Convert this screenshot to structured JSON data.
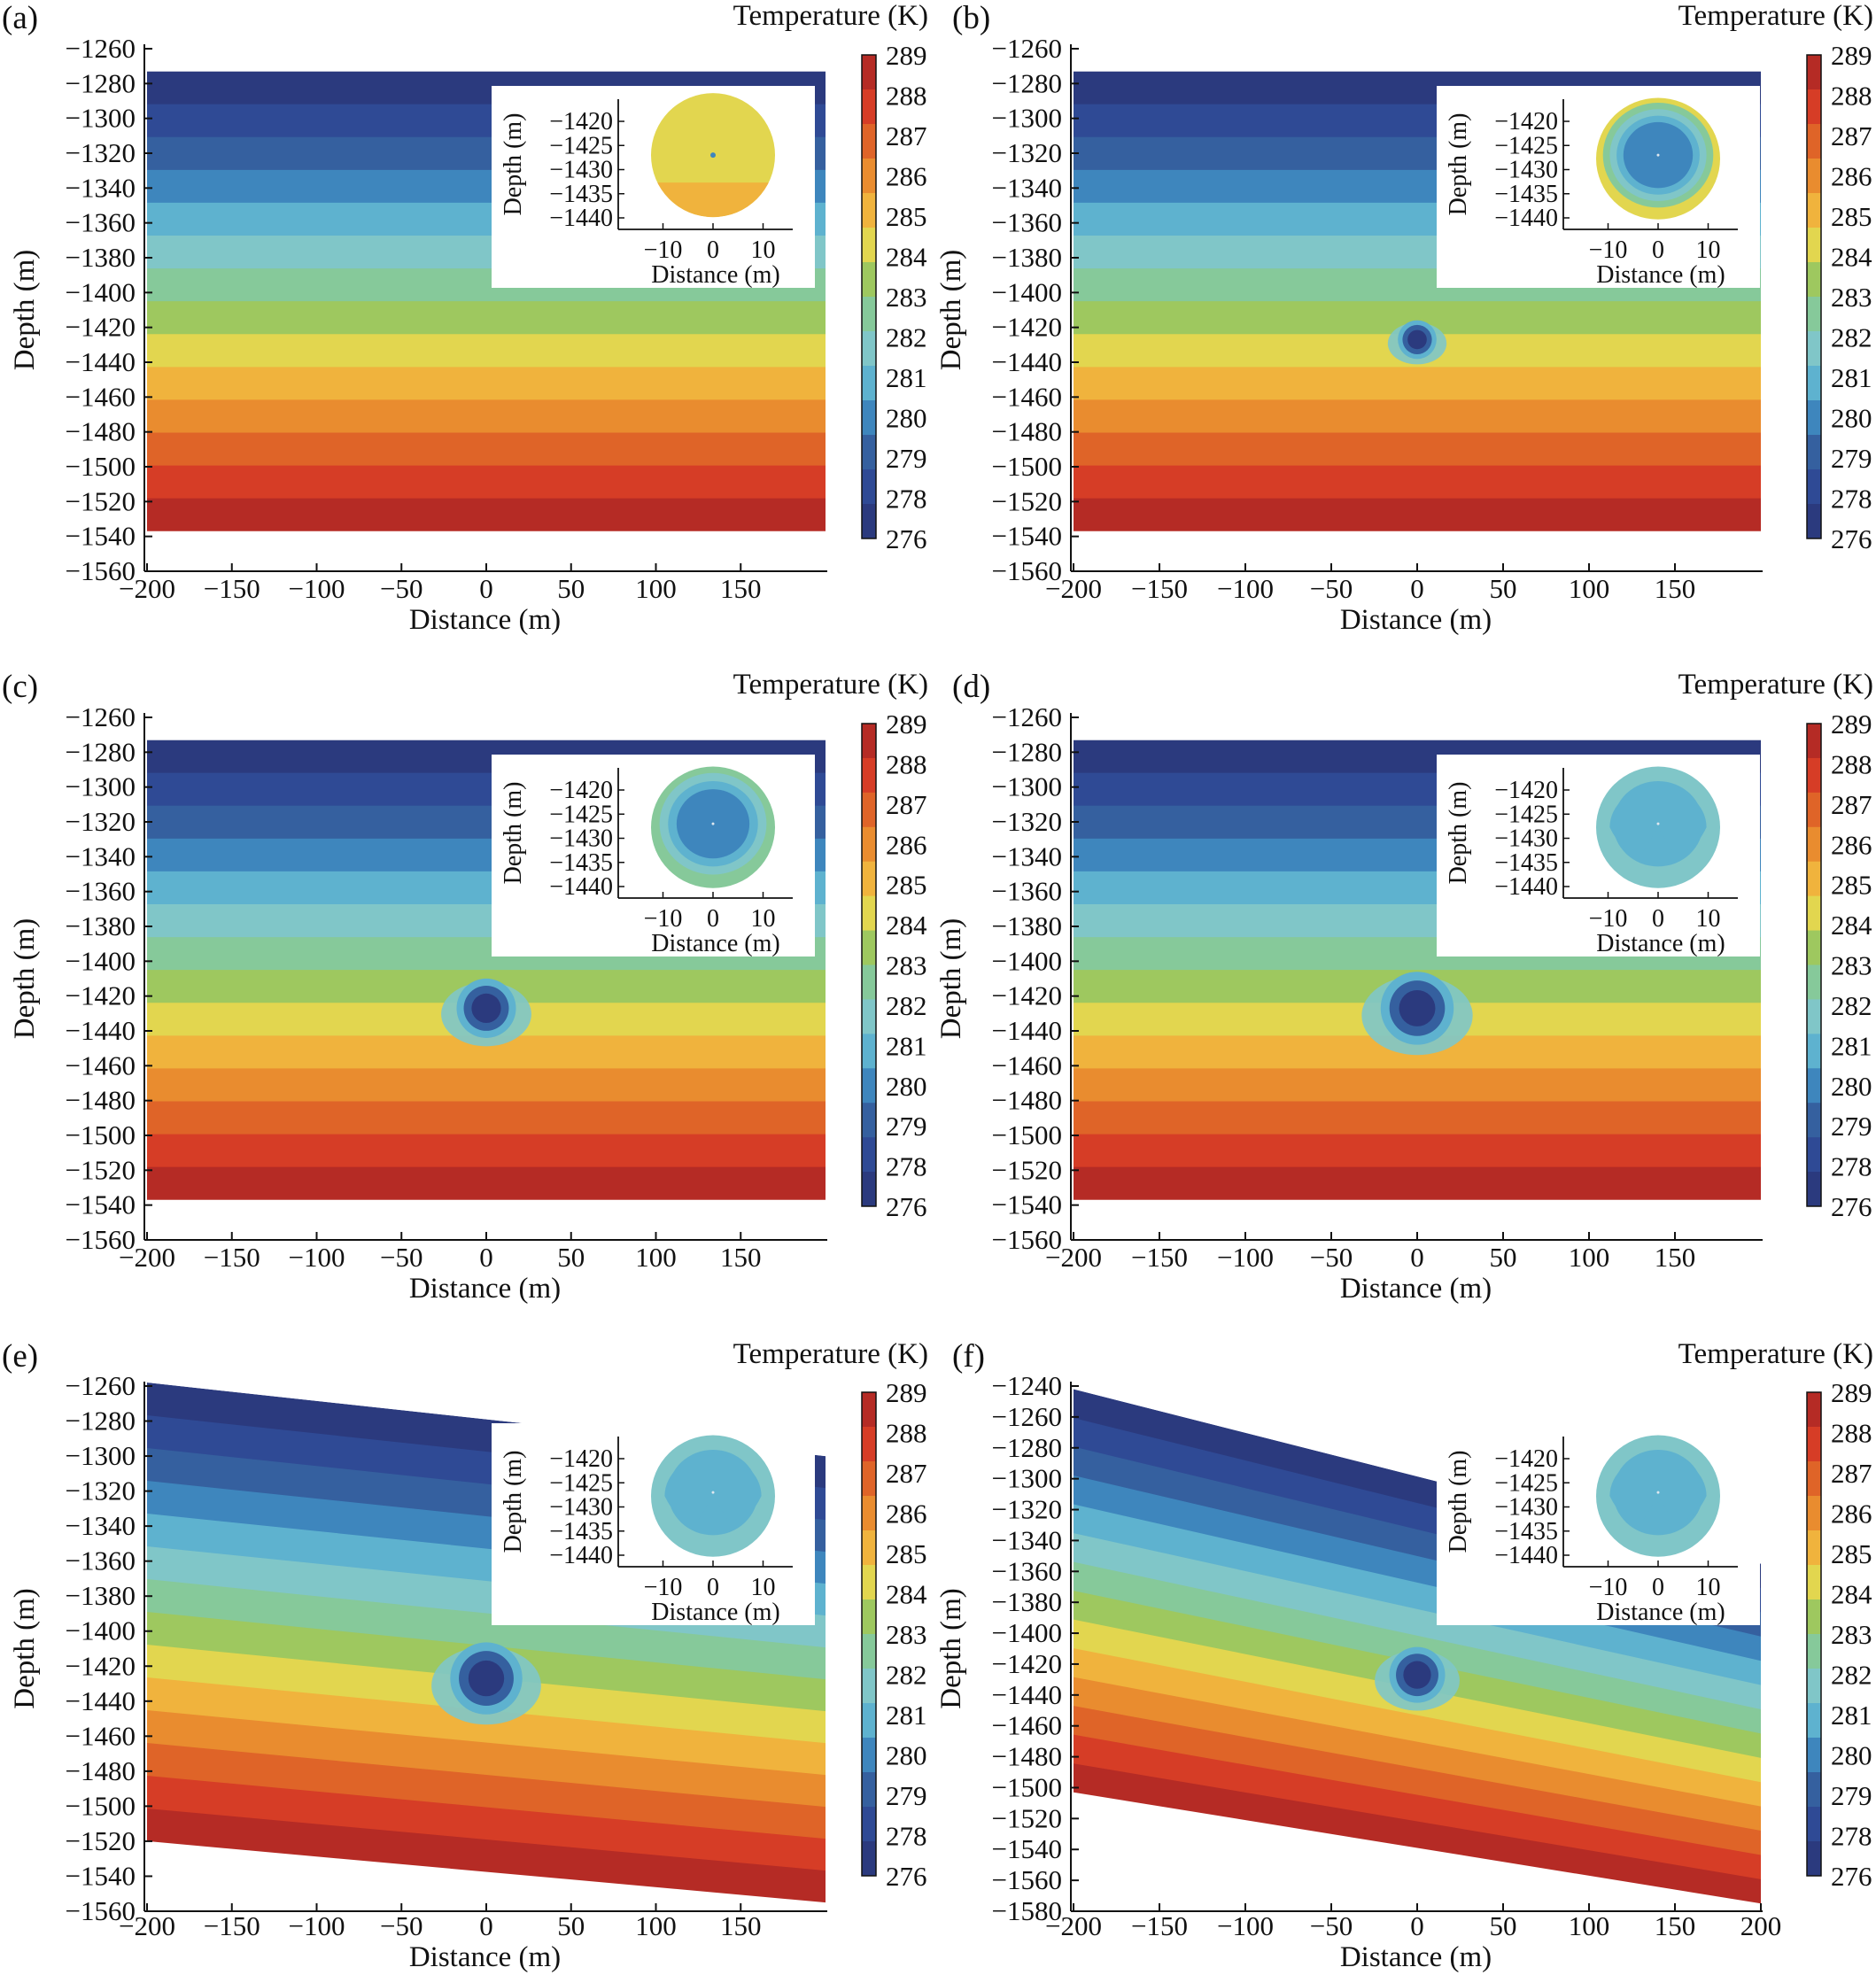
{
  "figure": {
    "panel_labels": [
      "(a)",
      "(b)",
      "(c)",
      "(d)",
      "(e)",
      "(f)"
    ],
    "colorbar_title": "Temperature (K)",
    "colorbar_ticks": [
      289,
      288,
      287,
      286,
      285,
      284,
      283,
      282,
      281,
      280,
      279,
      278,
      276
    ],
    "colors": [
      "#2b3a7e",
      "#2f4a95",
      "#35609f",
      "#3e86bd",
      "#5eb2cf",
      "#80c6c8",
      "#86c99a",
      "#9ec85f",
      "#e2d64f",
      "#f0b33d",
      "#e98c2f",
      "#df6428",
      "#d63d26",
      "#b52b25"
    ]
  },
  "chart_data": [
    {
      "panel": "(a)",
      "type": "heatmap",
      "xlabel": "Distance (m)",
      "ylabel": "Depth (m)",
      "xticks": [
        -200,
        -150,
        -100,
        -50,
        0,
        50,
        100,
        150
      ],
      "yticks": [
        -1260,
        -1280,
        -1300,
        -1320,
        -1340,
        -1360,
        -1380,
        -1400,
        -1420,
        -1440,
        -1460,
        -1480,
        -1500,
        -1520,
        -1540,
        -1560
      ],
      "xlim": [
        -200,
        200
      ],
      "ylim": [
        -1560,
        -1260
      ],
      "domain": {
        "x": [
          -200,
          200
        ],
        "top": [
          -1273,
          -1273
        ],
        "bottom": [
          -1537,
          -1537
        ]
      },
      "levels": [
        278,
        279,
        280,
        281,
        282,
        283,
        284,
        285,
        286,
        287,
        288,
        289
      ],
      "hydrate": {
        "x": 0,
        "y": -1427,
        "radius": 0
      },
      "inset": {
        "xlabel": "Distance (m)",
        "ylabel": "Depth (m)",
        "xticks": [
          -10,
          0,
          10
        ],
        "yticks": [
          -1420,
          -1425,
          -1430,
          -1435,
          -1440
        ],
        "contours": [
          284,
          285
        ],
        "core_temperature": 278
      }
    },
    {
      "panel": "(b)",
      "type": "heatmap",
      "xlabel": "Distance (m)",
      "ylabel": "Depth (m)",
      "xticks": [
        -200,
        -150,
        -100,
        -50,
        0,
        50,
        100,
        150
      ],
      "yticks": [
        -1260,
        -1280,
        -1300,
        -1320,
        -1340,
        -1360,
        -1380,
        -1400,
        -1420,
        -1440,
        -1460,
        -1480,
        -1500,
        -1520,
        -1540,
        -1560
      ],
      "xlim": [
        -200,
        200
      ],
      "ylim": [
        -1560,
        -1260
      ],
      "domain": {
        "x": [
          -200,
          200
        ],
        "top": [
          -1273,
          -1273
        ],
        "bottom": [
          -1537,
          -1537
        ]
      },
      "levels": [
        278,
        279,
        280,
        281,
        282,
        283,
        284,
        285,
        286,
        287,
        288,
        289
      ],
      "hydrate": {
        "x": 0,
        "y": -1427,
        "radius": 9
      },
      "inset": {
        "xlabel": "Distance (m)",
        "ylabel": "Depth (m)",
        "xticks": [
          -10,
          0,
          10
        ],
        "yticks": [
          -1420,
          -1425,
          -1430,
          -1435,
          -1440
        ],
        "contours": [
          284,
          282,
          281,
          280,
          279
        ],
        "core_temperature": 279
      }
    },
    {
      "panel": "(c)",
      "type": "heatmap",
      "xlabel": "Distance (m)",
      "ylabel": "Depth (m)",
      "xticks": [
        -200,
        -150,
        -100,
        -50,
        0,
        50,
        100,
        150
      ],
      "yticks": [
        -1260,
        -1280,
        -1300,
        -1320,
        -1340,
        -1360,
        -1380,
        -1400,
        -1420,
        -1440,
        -1460,
        -1480,
        -1500,
        -1520,
        -1540,
        -1560
      ],
      "xlim": [
        -200,
        200
      ],
      "ylim": [
        -1560,
        -1260
      ],
      "domain": {
        "x": [
          -200,
          200
        ],
        "top": [
          -1273,
          -1273
        ],
        "bottom": [
          -1537,
          -1537
        ]
      },
      "levels": [
        278,
        279,
        280,
        281,
        282,
        283,
        284,
        285,
        286,
        287,
        288,
        289
      ],
      "hydrate": {
        "x": 0,
        "y": -1427,
        "radius": 14
      },
      "inset": {
        "xlabel": "Distance (m)",
        "ylabel": "Depth (m)",
        "xticks": [
          -10,
          0,
          10
        ],
        "yticks": [
          -1420,
          -1425,
          -1430,
          -1435,
          -1440
        ],
        "contours": [
          282,
          281,
          280,
          279
        ],
        "core_temperature": 279
      }
    },
    {
      "panel": "(d)",
      "type": "heatmap",
      "xlabel": "Distance (m)",
      "ylabel": "Depth (m)",
      "xticks": [
        -200,
        -150,
        -100,
        -50,
        0,
        50,
        100,
        150
      ],
      "yticks": [
        -1260,
        -1280,
        -1300,
        -1320,
        -1340,
        -1360,
        -1380,
        -1400,
        -1420,
        -1440,
        -1460,
        -1480,
        -1500,
        -1520,
        -1540,
        -1560
      ],
      "xlim": [
        -200,
        200
      ],
      "ylim": [
        -1560,
        -1260
      ],
      "domain": {
        "x": [
          -200,
          200
        ],
        "top": [
          -1273,
          -1273
        ],
        "bottom": [
          -1537,
          -1537
        ]
      },
      "levels": [
        278,
        279,
        280,
        281,
        282,
        283,
        284,
        285,
        286,
        287,
        288,
        289
      ],
      "hydrate": {
        "x": 0,
        "y": -1427,
        "radius": 17
      },
      "inset": {
        "xlabel": "Distance (m)",
        "ylabel": "Depth (m)",
        "xticks": [
          -10,
          0,
          10
        ],
        "yticks": [
          -1420,
          -1425,
          -1430,
          -1435,
          -1440
        ],
        "contours": [
          281,
          280
        ],
        "core_temperature": 280
      }
    },
    {
      "panel": "(e)",
      "type": "heatmap",
      "xlabel": "Distance (m)",
      "ylabel": "Depth (m)",
      "xticks": [
        -200,
        -150,
        -100,
        -50,
        0,
        50,
        100,
        150
      ],
      "yticks": [
        -1260,
        -1280,
        -1300,
        -1320,
        -1340,
        -1360,
        -1380,
        -1400,
        -1420,
        -1440,
        -1460,
        -1480,
        -1500,
        -1520,
        -1540,
        -1560
      ],
      "xlim": [
        -200,
        200
      ],
      "ylim": [
        -1560,
        -1260
      ],
      "domain": {
        "x": [
          -200,
          200
        ],
        "top": [
          -1258,
          -1300
        ],
        "bottom": [
          -1520,
          -1555
        ]
      },
      "levels": [
        278,
        279,
        280,
        281,
        282,
        283,
        284,
        285,
        286,
        287,
        288,
        289
      ],
      "hydrate": {
        "x": 0,
        "y": -1427,
        "radius": 17
      },
      "inset": {
        "xlabel": "Distance (m)",
        "ylabel": "Depth (m)",
        "xticks": [
          -10,
          0,
          10
        ],
        "yticks": [
          -1420,
          -1425,
          -1430,
          -1435,
          -1440
        ],
        "contours": [
          281,
          280
        ],
        "core_temperature": 280
      }
    },
    {
      "panel": "(f)",
      "type": "heatmap",
      "xlabel": "Distance (m)",
      "ylabel": "Depth (m)",
      "xticks": [
        -200,
        -150,
        -100,
        -50,
        0,
        50,
        100,
        150,
        200
      ],
      "yticks": [
        -1240,
        -1260,
        -1280,
        -1300,
        -1320,
        -1340,
        -1360,
        -1380,
        -1400,
        -1420,
        -1440,
        -1460,
        -1480,
        -1500,
        -1520,
        -1540,
        -1560,
        -1580
      ],
      "xlim": [
        -200,
        200
      ],
      "ylim": [
        -1580,
        -1240
      ],
      "domain": {
        "x": [
          -200,
          200
        ],
        "top": [
          -1242,
          -1355
        ],
        "bottom": [
          -1503,
          -1575
        ]
      },
      "levels": [
        278,
        279,
        280,
        281,
        282,
        283,
        284,
        285,
        286,
        287,
        288,
        289
      ],
      "hydrate": {
        "x": 0,
        "y": -1427,
        "radius": 13
      },
      "inset": {
        "xlabel": "Distance (m)",
        "ylabel": "Depth (m)",
        "xticks": [
          -10,
          0,
          10
        ],
        "yticks": [
          -1420,
          -1425,
          -1430,
          -1435,
          -1440
        ],
        "contours": [
          281,
          280
        ],
        "core_temperature": 280
      }
    }
  ]
}
